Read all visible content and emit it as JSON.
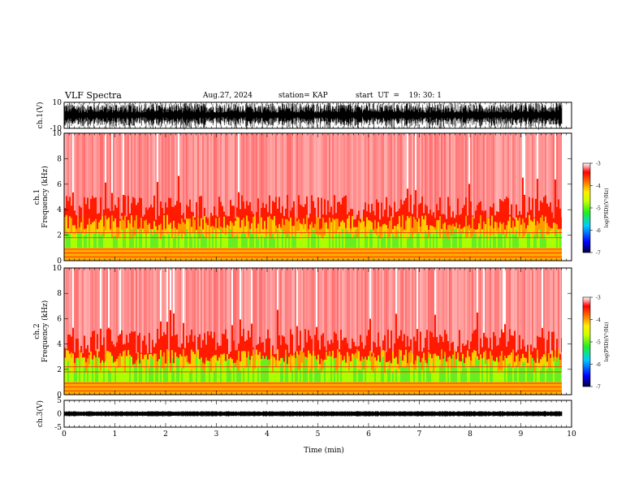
{
  "header": {
    "title": "VLF Spectra",
    "date": "Aug.27, 2024",
    "station": "station= KAP",
    "start": "start  UT  =    19: 30: 1"
  },
  "colors": {
    "background": "#ffffff",
    "axis": "#000000",
    "colorbar": [
      "#00004a",
      "#0000ff",
      "#00ffff",
      "#22ee22",
      "#ccff00",
      "#ffff00",
      "#ff8800",
      "#ff0000",
      "#ffffff"
    ]
  },
  "chart_data": [
    {
      "type": "line",
      "ylabel": "ch.1(V)",
      "ylim": [
        -10,
        10
      ],
      "yticks": [
        "10",
        "-10"
      ],
      "xlim": [
        0,
        10
      ],
      "note_visible": "dense waveform"
    },
    {
      "type": "heatmap",
      "ylabel_top": "ch.1",
      "ylabel": "Frequency  (kHz)",
      "ylim": [
        0,
        10
      ],
      "yticks": [
        "0",
        "2",
        "4",
        "6",
        "8",
        "10"
      ],
      "xlim": [
        0,
        10
      ],
      "colorbar": {
        "label": "log(PSD)(V²/Hz)",
        "ticks": [
          "-3",
          "-4",
          "-5",
          "-6",
          "-7"
        ],
        "range": [
          -7,
          -3
        ]
      }
    },
    {
      "type": "heatmap",
      "ylabel_top": "ch.2",
      "ylabel": "Frequency  (kHz)",
      "ylim": [
        0,
        10
      ],
      "yticks": [
        "0",
        "2",
        "4",
        "6",
        "8",
        "10"
      ],
      "xlim": [
        0,
        10
      ],
      "colorbar": {
        "label": "log(PSD)(V²/Hz)",
        "ticks": [
          "-3",
          "-4",
          "-5",
          "-6",
          "-7"
        ],
        "range": [
          -7,
          -3
        ]
      }
    },
    {
      "type": "line",
      "ylabel": "ch.3(V)",
      "ylim": [
        -5,
        5
      ],
      "yticks": [
        "5",
        "0",
        "-5"
      ],
      "xlim": [
        0,
        10
      ],
      "xlabel": "Time  (min)",
      "xticks": [
        "0",
        "1",
        "2",
        "3",
        "4",
        "5",
        "6",
        "7",
        "8",
        "9",
        "10"
      ]
    }
  ]
}
